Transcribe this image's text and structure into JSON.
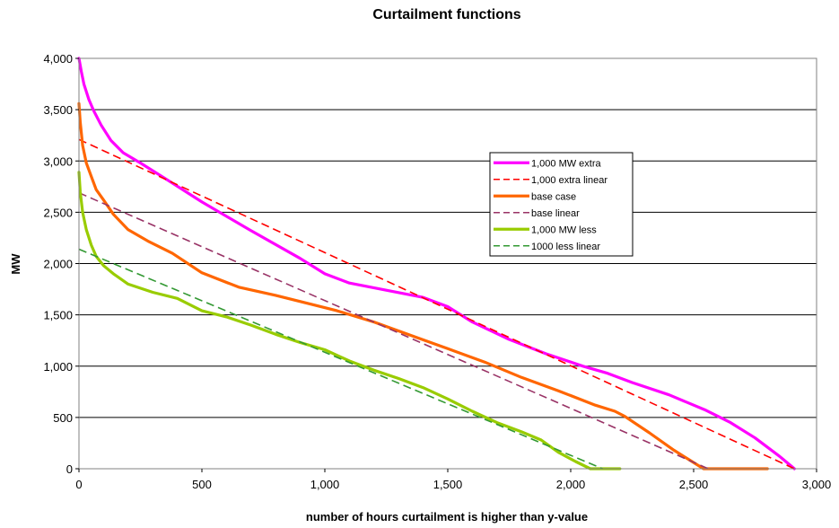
{
  "chart_data": {
    "type": "line",
    "title": "Curtailment functions",
    "xlabel": "number of hours curtailment is higher than y-value",
    "ylabel": "MW",
    "xlim": [
      0,
      3000
    ],
    "ylim": [
      0,
      4000
    ],
    "x_ticks": [
      "0",
      "500",
      "1,000",
      "1,500",
      "2,000",
      "2,500",
      "3,000"
    ],
    "y_ticks": [
      "0",
      "500",
      "1,000",
      "1,500",
      "2,000",
      "2,500",
      "3,000",
      "3,500",
      "4,000"
    ],
    "grid": "horizontal",
    "legend_position": "right-inside",
    "series": [
      {
        "name": "1,000 MW extra",
        "color": "#ff00ff",
        "style": "solid",
        "points": [
          [
            0,
            4000
          ],
          [
            10,
            3870
          ],
          [
            20,
            3750
          ],
          [
            40,
            3600
          ],
          [
            60,
            3490
          ],
          [
            90,
            3350
          ],
          [
            130,
            3200
          ],
          [
            180,
            3080
          ],
          [
            250,
            2980
          ],
          [
            350,
            2830
          ],
          [
            500,
            2600
          ],
          [
            700,
            2320
          ],
          [
            900,
            2050
          ],
          [
            1000,
            1900
          ],
          [
            1100,
            1810
          ],
          [
            1250,
            1740
          ],
          [
            1400,
            1670
          ],
          [
            1500,
            1580
          ],
          [
            1600,
            1430
          ],
          [
            1750,
            1260
          ],
          [
            1900,
            1120
          ],
          [
            2050,
            1000
          ],
          [
            2150,
            930
          ],
          [
            2250,
            840
          ],
          [
            2400,
            720
          ],
          [
            2550,
            570
          ],
          [
            2650,
            450
          ],
          [
            2750,
            300
          ],
          [
            2850,
            120
          ],
          [
            2910,
            0
          ]
        ]
      },
      {
        "name": "1,000 extra linear",
        "color": "#ff0000",
        "style": "dashed",
        "points": [
          [
            0,
            3210
          ],
          [
            2910,
            0
          ]
        ]
      },
      {
        "name": "base case",
        "color": "#ff6600",
        "style": "solid",
        "points": [
          [
            0,
            3560
          ],
          [
            5,
            3380
          ],
          [
            15,
            3150
          ],
          [
            30,
            2980
          ],
          [
            50,
            2850
          ],
          [
            70,
            2720
          ],
          [
            100,
            2620
          ],
          [
            140,
            2480
          ],
          [
            200,
            2330
          ],
          [
            280,
            2220
          ],
          [
            380,
            2100
          ],
          [
            500,
            1910
          ],
          [
            650,
            1770
          ],
          [
            800,
            1690
          ],
          [
            950,
            1600
          ],
          [
            1050,
            1540
          ],
          [
            1200,
            1430
          ],
          [
            1350,
            1300
          ],
          [
            1500,
            1170
          ],
          [
            1650,
            1040
          ],
          [
            1800,
            890
          ],
          [
            1950,
            760
          ],
          [
            2100,
            620
          ],
          [
            2180,
            560
          ],
          [
            2220,
            510
          ],
          [
            2320,
            350
          ],
          [
            2420,
            180
          ],
          [
            2500,
            60
          ],
          [
            2540,
            0
          ],
          [
            2600,
            0
          ],
          [
            2700,
            0
          ],
          [
            2800,
            0
          ]
        ]
      },
      {
        "name": "base linear",
        "color": "#993366",
        "style": "dashed",
        "points": [
          [
            0,
            2690
          ],
          [
            2560,
            0
          ]
        ]
      },
      {
        "name": "1,000 MW less",
        "color": "#99cc00",
        "style": "solid",
        "points": [
          [
            0,
            2890
          ],
          [
            5,
            2700
          ],
          [
            15,
            2500
          ],
          [
            30,
            2330
          ],
          [
            50,
            2180
          ],
          [
            70,
            2070
          ],
          [
            100,
            1980
          ],
          [
            140,
            1900
          ],
          [
            200,
            1800
          ],
          [
            300,
            1720
          ],
          [
            400,
            1660
          ],
          [
            500,
            1540
          ],
          [
            600,
            1480
          ],
          [
            700,
            1400
          ],
          [
            800,
            1310
          ],
          [
            900,
            1230
          ],
          [
            1000,
            1160
          ],
          [
            1100,
            1050
          ],
          [
            1200,
            960
          ],
          [
            1300,
            880
          ],
          [
            1400,
            790
          ],
          [
            1500,
            680
          ],
          [
            1600,
            560
          ],
          [
            1700,
            450
          ],
          [
            1800,
            360
          ],
          [
            1880,
            280
          ],
          [
            1950,
            160
          ],
          [
            2020,
            70
          ],
          [
            2080,
            0
          ],
          [
            2140,
            0
          ],
          [
            2200,
            0
          ]
        ]
      },
      {
        "name": "1000 less linear",
        "color": "#339933",
        "style": "dashed",
        "points": [
          [
            0,
            2140
          ],
          [
            2130,
            0
          ]
        ]
      }
    ]
  }
}
